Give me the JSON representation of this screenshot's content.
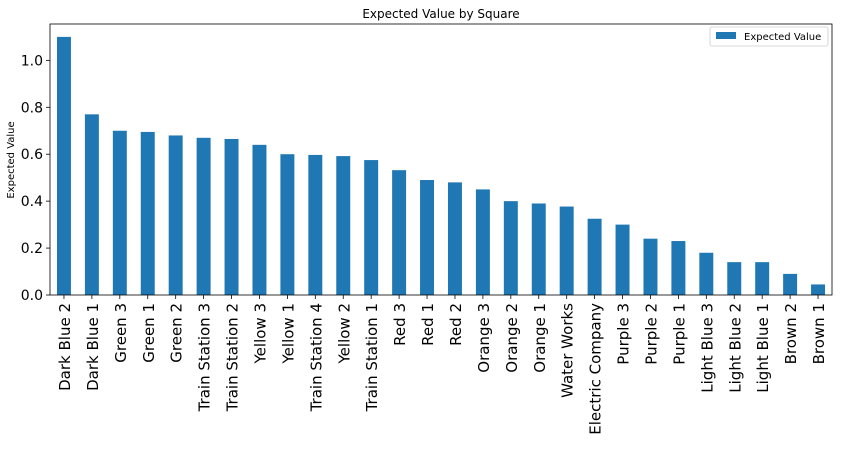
{
  "chart_data": {
    "type": "bar",
    "title": "Expected Value by Square",
    "xlabel": "",
    "ylabel": "Expected Value",
    "ylim": [
      0,
      1.155
    ],
    "yticks": [
      0.0,
      0.2,
      0.4,
      0.6,
      0.8,
      1.0
    ],
    "ytick_labels": [
      "0.0",
      "0.2",
      "0.4",
      "0.6",
      "0.8",
      "1.0"
    ],
    "grid": false,
    "legend_position": "top-right",
    "categories": [
      "Dark Blue 2",
      "Dark Blue 1",
      "Green 3",
      "Green 1",
      "Green 2",
      "Train Station 3",
      "Train Station 2",
      "Yellow 3",
      "Yellow 1",
      "Train Station 4",
      "Yellow 2",
      "Train Station 1",
      "Red 3",
      "Red 1",
      "Red 2",
      "Orange 3",
      "Orange 2",
      "Orange 1",
      "Water Works",
      "Electric Company",
      "Purple 3",
      "Purple 2",
      "Purple 1",
      "Light Blue 3",
      "Light Blue 2",
      "Light Blue 1",
      "Brown 2",
      "Brown 1"
    ],
    "series": [
      {
        "name": "Expected Value",
        "color": "#1f77b4",
        "values": [
          1.1,
          0.77,
          0.7,
          0.695,
          0.68,
          0.67,
          0.665,
          0.64,
          0.6,
          0.597,
          0.592,
          0.575,
          0.532,
          0.49,
          0.48,
          0.45,
          0.4,
          0.39,
          0.377,
          0.325,
          0.3,
          0.24,
          0.23,
          0.18,
          0.14,
          0.14,
          0.09,
          0.045
        ]
      }
    ]
  }
}
